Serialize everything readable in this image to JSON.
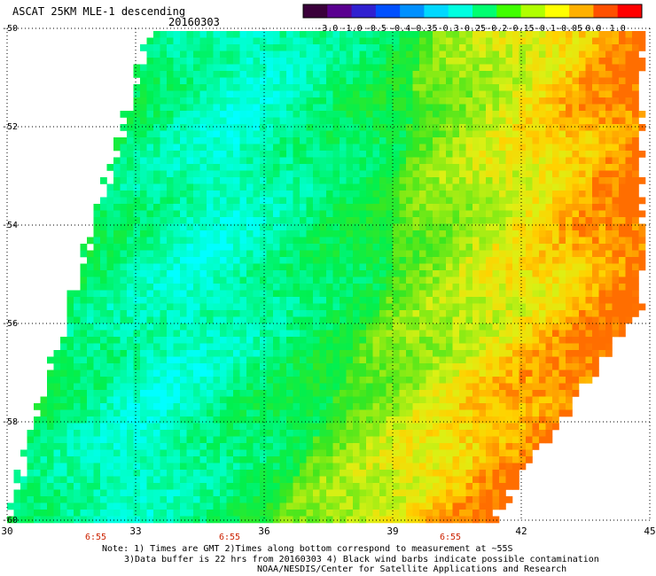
{
  "header": {
    "title": "ASCAT 25KM MLE-1 descending",
    "date": "20160303"
  },
  "colorbar": {
    "labels": [
      "-3.0",
      "-1.0",
      "-0.5",
      "-0.4",
      "-0.35",
      "-0.3",
      "-0.25",
      "-0.2",
      "-0.15",
      "-0.1",
      "-0.05",
      "0.0",
      "1.0"
    ],
    "colors": [
      "#3a003a",
      "#5a0090",
      "#3020d0",
      "#0050ff",
      "#0090ff",
      "#00d8ff",
      "#00ffe0",
      "#00ff70",
      "#40ff00",
      "#b0ff00",
      "#ffff00",
      "#ffb000",
      "#ff5000",
      "#ff0000"
    ]
  },
  "map": {
    "lat_labels": [
      "-50",
      "-52",
      "-54",
      "-56",
      "-58",
      "-60"
    ],
    "lon_labels": [
      "30",
      "33",
      "36",
      "39",
      "42",
      "45"
    ],
    "time_labels": [
      "6:55",
      "6:55",
      "6:55"
    ],
    "time_color": "#cc2200",
    "gridline_color": "#000000"
  },
  "notes": {
    "line1": "Note: 1) Times are GMT 2)Times along bottom correspond to measurement at ~55S",
    "line2": "3)Data buffer is 22 hrs from 20160303 4) Black wind barbs indicate possible contamination",
    "line3": "NOAA/NESDIS/Center for Satellite Applications and Research"
  }
}
